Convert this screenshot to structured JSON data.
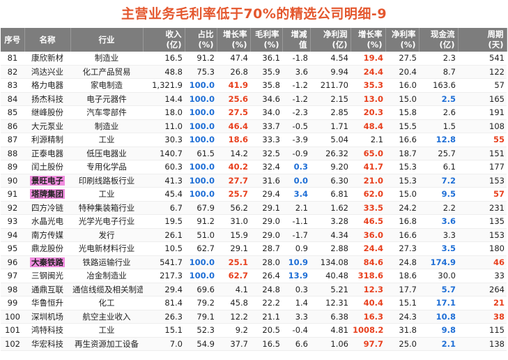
{
  "title": "主营业务毛利率低于70%的精选公司明细-9",
  "headers": [
    {
      "l1": "序号",
      "l2": ""
    },
    {
      "l1": "名称",
      "l2": ""
    },
    {
      "l1": "行业",
      "l2": ""
    },
    {
      "l1": "收入",
      "l2": "(亿)"
    },
    {
      "l1": "占比",
      "l2": "(%)"
    },
    {
      "l1": "增长率",
      "l2": "(%)"
    },
    {
      "l1": "毛利率",
      "l2": "(%)"
    },
    {
      "l1": "增减",
      "l2": "值"
    },
    {
      "l1": "净利润",
      "l2": "(亿)"
    },
    {
      "l1": "增长率",
      "l2": "(%)"
    },
    {
      "l1": "净利率",
      "l2": "(%)"
    },
    {
      "l1": "现金流",
      "l2": "(亿)"
    },
    {
      "l1": "周期",
      "l2": "(天)"
    }
  ],
  "colors": {
    "header_bg": "#7d7d7d",
    "title": "#e4572e",
    "blue": "#1f6fd6",
    "red": "#e8401e",
    "highlight": "#f08cdf"
  },
  "rows": [
    {
      "no": "81",
      "name": "康欣新材",
      "industry": "制造业",
      "rev": "16.5",
      "share": "91.2",
      "growth": "47.4",
      "gm": "36.1",
      "chg": "-1.8",
      "np": "4.54",
      "npg": "19.4",
      "nm": "27.5",
      "cf": "2.3",
      "cycle": "541",
      "hl": false,
      "s": {
        "npg": "red"
      }
    },
    {
      "no": "82",
      "name": "鸿达兴业",
      "industry": "化工产品贸易",
      "rev": "48.8",
      "share": "75.3",
      "growth": "26.8",
      "gm": "35.9",
      "chg": "3.6",
      "np": "9.94",
      "npg": "24.4",
      "nm": "20.4",
      "cf": "8.7",
      "cycle": "122",
      "hl": false,
      "s": {
        "npg": "red"
      }
    },
    {
      "no": "83",
      "name": "格力电器",
      "industry": "家电制造",
      "rev": "1,321.9",
      "share": "100.0",
      "growth": "41.9",
      "gm": "35.8",
      "chg": "-1.2",
      "np": "211.70",
      "npg": "35.3",
      "nm": "16.0",
      "cf": "163.6",
      "cycle": "57",
      "hl": false,
      "s": {
        "share": "blue",
        "growth": "red",
        "npg": "red"
      }
    },
    {
      "no": "84",
      "name": "扬杰科技",
      "industry": "电子元器件",
      "rev": "14.4",
      "share": "100.0",
      "growth": "25.6",
      "gm": "34.6",
      "chg": "-1.2",
      "np": "2.15",
      "npg": "13.0",
      "nm": "15.0",
      "cf": "2.5",
      "cycle": "165",
      "hl": false,
      "s": {
        "share": "blue",
        "growth": "red",
        "npg": "red",
        "cf": "blue"
      }
    },
    {
      "no": "85",
      "name": "继峰股份",
      "industry": "汽车零部件",
      "rev": "18.0",
      "share": "100.0",
      "growth": "27.5",
      "gm": "34.0",
      "chg": "-2.3",
      "np": "2.85",
      "npg": "20.3",
      "nm": "15.8",
      "cf": "2.6",
      "cycle": "191",
      "hl": false,
      "s": {
        "share": "blue",
        "growth": "red",
        "npg": "red"
      }
    },
    {
      "no": "86",
      "name": "大元泵业",
      "industry": "制造业",
      "rev": "11.0",
      "share": "100.0",
      "growth": "46.4",
      "gm": "33.7",
      "chg": "-0.5",
      "np": "1.71",
      "npg": "48.4",
      "nm": "15.5",
      "cf": "1.5",
      "cycle": "108",
      "hl": false,
      "s": {
        "share": "blue",
        "growth": "red",
        "npg": "red"
      }
    },
    {
      "no": "87",
      "name": "利源精制",
      "industry": "工业",
      "rev": "30.3",
      "share": "100.0",
      "growth": "18.6",
      "gm": "33.3",
      "chg": "-3.9",
      "np": "5.04",
      "npg": "2.1",
      "nm": "16.6",
      "cf": "12.8",
      "cycle": "55",
      "hl": false,
      "s": {
        "share": "blue",
        "growth": "red",
        "cf": "blue",
        "cycle": "red"
      }
    },
    {
      "no": "88",
      "name": "正泰电器",
      "industry": "低压电器业",
      "rev": "140.7",
      "share": "61.5",
      "growth": "14.2",
      "gm": "32.5",
      "chg": "-0.9",
      "np": "26.32",
      "npg": "65.0",
      "nm": "18.7",
      "cf": "25.7",
      "cycle": "151",
      "hl": false,
      "s": {
        "npg": "red"
      }
    },
    {
      "no": "89",
      "name": "闰土股份",
      "industry": "专用化学品",
      "rev": "60.3",
      "share": "100.0",
      "growth": "40.2",
      "gm": "32.4",
      "chg": "0.3",
      "np": "9.20",
      "npg": "41.7",
      "nm": "15.3",
      "cf": "6.1",
      "cycle": "177",
      "hl": false,
      "s": {
        "share": "blue",
        "growth": "red",
        "chg": "blue",
        "npg": "red"
      }
    },
    {
      "no": "90",
      "name": "景旺电子",
      "industry": "印刷线路板行业",
      "rev": "41.3",
      "share": "100.0",
      "growth": "27.7",
      "gm": "31.6",
      "chg": "0.0",
      "np": "6.30",
      "npg": "21.0",
      "nm": "15.3",
      "cf": "7.2",
      "cycle": "153",
      "hl": true,
      "s": {
        "share": "blue",
        "growth": "red",
        "chg": "blue",
        "npg": "red",
        "cf": "blue"
      }
    },
    {
      "no": "91",
      "name": "塔牌集团",
      "industry": "工业",
      "rev": "45.4",
      "share": "100.0",
      "growth": "25.7",
      "gm": "29.4",
      "chg": "3.4",
      "np": "6.81",
      "npg": "62.0",
      "nm": "15.0",
      "cf": "9.5",
      "cycle": "57",
      "hl": true,
      "s": {
        "share": "blue",
        "growth": "red",
        "chg": "blue",
        "npg": "red",
        "cf": "blue",
        "cycle": "red"
      }
    },
    {
      "no": "92",
      "name": "四方冷链",
      "industry": "特种集装箱行业",
      "rev": "6.7",
      "share": "67.9",
      "growth": "56.2",
      "gm": "29.1",
      "chg": "2.1",
      "np": "1.62",
      "npg": "33.5",
      "nm": "24.2",
      "cf": "2.2",
      "cycle": "231",
      "hl": false,
      "s": {
        "npg": "red"
      }
    },
    {
      "no": "93",
      "name": "水晶光电",
      "industry": "光学光电子行业",
      "rev": "19.5",
      "share": "91.2",
      "growth": "31.0",
      "gm": "29.0",
      "chg": "-1.1",
      "np": "3.28",
      "npg": "46.5",
      "nm": "16.8",
      "cf": "3.6",
      "cycle": "135",
      "hl": false,
      "s": {
        "npg": "red",
        "cf": "blue"
      }
    },
    {
      "no": "94",
      "name": "南方传媒",
      "industry": "发行",
      "rev": "26.1",
      "share": "51.0",
      "growth": "15.9",
      "gm": "29.0",
      "chg": "-1.7",
      "np": "4.34",
      "npg": "36.0",
      "nm": "16.6",
      "cf": "3.3",
      "cycle": "153",
      "hl": false,
      "s": {
        "npg": "red"
      }
    },
    {
      "no": "95",
      "name": "鼎龙股份",
      "industry": "光电新材料行业",
      "rev": "10.5",
      "share": "62.7",
      "growth": "29.1",
      "gm": "28.7",
      "chg": "0.9",
      "np": "2.88",
      "npg": "24.4",
      "nm": "27.3",
      "cf": "3.5",
      "cycle": "180",
      "hl": false,
      "s": {
        "npg": "red",
        "cf": "blue"
      }
    },
    {
      "no": "96",
      "name": "大秦铁路",
      "industry": "铁路运输行业",
      "rev": "541.7",
      "share": "100.0",
      "growth": "25.1",
      "gm": "28.0",
      "chg": "10.9",
      "np": "134.08",
      "npg": "84.6",
      "nm": "24.8",
      "cf": "174.9",
      "cycle": "46",
      "hl": true,
      "s": {
        "share": "blue",
        "growth": "red",
        "chg": "blue",
        "npg": "red",
        "cf": "blue",
        "cycle": "red"
      }
    },
    {
      "no": "97",
      "name": "三钢闽光",
      "industry": "冶金制造业",
      "rev": "217.3",
      "share": "100.0",
      "growth": "62.7",
      "gm": "26.4",
      "chg": "13.9",
      "np": "40.48",
      "npg": "318.6",
      "nm": "18.6",
      "cf": "30.0",
      "cycle": "33",
      "hl": false,
      "s": {
        "share": "blue",
        "growth": "red",
        "chg": "blue",
        "npg": "red"
      }
    },
    {
      "no": "98",
      "name": "通鼎互联",
      "industry": "通信线缆及相关制造",
      "rev": "29.4",
      "share": "69.6",
      "growth": "4.1",
      "gm": "24.8",
      "chg": "0.3",
      "np": "5.21",
      "npg": "12.3",
      "nm": "17.7",
      "cf": "5.7",
      "cycle": "264",
      "hl": false,
      "s": {
        "npg": "red",
        "cf": "blue"
      }
    },
    {
      "no": "99",
      "name": "华鲁恒升",
      "industry": "化工",
      "rev": "81.4",
      "share": "79.2",
      "growth": "45.8",
      "gm": "22.2",
      "chg": "1.4",
      "np": "12.31",
      "npg": "40.4",
      "nm": "15.1",
      "cf": "17.1",
      "cycle": "21",
      "hl": false,
      "s": {
        "npg": "red",
        "cf": "blue",
        "cycle": "red"
      }
    },
    {
      "no": "100",
      "name": "深圳机场",
      "industry": "航空主业收入",
      "rev": "26.3",
      "share": "79.1",
      "growth": "12.2",
      "gm": "21.1",
      "chg": "3.3",
      "np": "6.38",
      "npg": "16.3",
      "nm": "24.3",
      "cf": "10.8",
      "cycle": "38",
      "hl": false,
      "s": {
        "npg": "red",
        "cf": "blue",
        "cycle": "red"
      }
    },
    {
      "no": "101",
      "name": "鸿特科技",
      "industry": "工业",
      "rev": "15.1",
      "share": "52.3",
      "growth": "9.2",
      "gm": "20.5",
      "chg": "-0.4",
      "np": "4.81",
      "npg": "1008.2",
      "nm": "31.8",
      "cf": "9.8",
      "cycle": "115",
      "hl": false,
      "s": {
        "npg": "red",
        "cf": "blue"
      }
    },
    {
      "no": "102",
      "name": "华宏科技",
      "industry": "再生资源加工设备",
      "rev": "7.0",
      "share": "54.9",
      "growth": "37.7",
      "gm": "16.5",
      "chg": "6.6",
      "np": "1.06",
      "npg": "97.7",
      "nm": "25.0",
      "cf": "2.1",
      "cycle": "138",
      "hl": false,
      "s": {
        "npg": "red",
        "cf": "blue"
      }
    }
  ]
}
